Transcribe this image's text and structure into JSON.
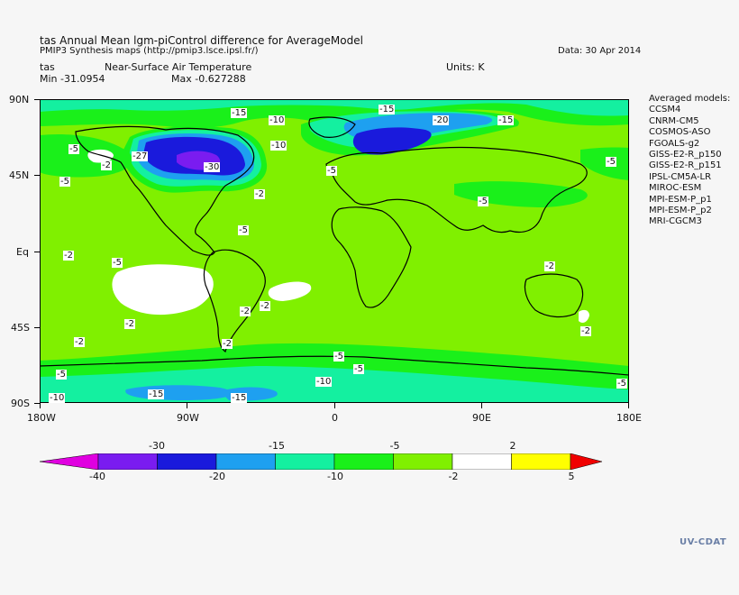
{
  "header": {
    "title": "tas Annual Mean lgm-piControl difference for AverageModel",
    "subtitle": "PMIP3 Synthesis maps (http://pmip3.lsce.ipsl.fr/)",
    "date": "Data: 30 Apr 2014",
    "var_short": "tas",
    "var_long": "Near-Surface Air Temperature",
    "units": "Units: K",
    "min": "Min -31.0954",
    "max": "Max -0.627288"
  },
  "axes": {
    "lat_labels": [
      "90N",
      "45N",
      "Eq",
      "45S",
      "90S"
    ],
    "lon_labels": [
      "180W",
      "90W",
      "0",
      "90E",
      "180E"
    ]
  },
  "models": {
    "heading": "Averaged models:",
    "list": [
      "CCSM4",
      "CNRM-CM5",
      "COSMOS-ASO",
      "FGOALS-g2",
      "GISS-E2-R_p150",
      "GISS-E2-R_p151",
      "IPSL-CM5A-LR",
      "MIROC-ESM",
      "MPI-ESM-P_p1",
      "MPI-ESM-P_p2",
      "MRI-CGCM3"
    ]
  },
  "colorbar": {
    "top_labels": [
      "-30",
      "-15",
      "-5",
      "2"
    ],
    "bottom_labels": [
      "-40",
      "-20",
      "-10",
      "-2",
      "5"
    ],
    "colors": [
      "#e000e0",
      "#7a1cf0",
      "#1a1adc",
      "#1ea0f0",
      "#14f0a0",
      "#1af01a",
      "#80f000",
      "#ffffff",
      "#ffff00",
      "#f00000"
    ]
  },
  "contour_labels": [
    "-15",
    "-10",
    "-15",
    "-20",
    "-15",
    "-5",
    "-2",
    "-27",
    "-30",
    "-10",
    "-5",
    "-5",
    "-2",
    "-5",
    "-5",
    "-2",
    "-5",
    "-2",
    "-2",
    "-2",
    "-2",
    "-2",
    "-2",
    "-2",
    "-5",
    "-5",
    "-10",
    "-5",
    "-5",
    "-15",
    "-15",
    "-10",
    "-5"
  ],
  "logo": "UV-CDAT"
}
